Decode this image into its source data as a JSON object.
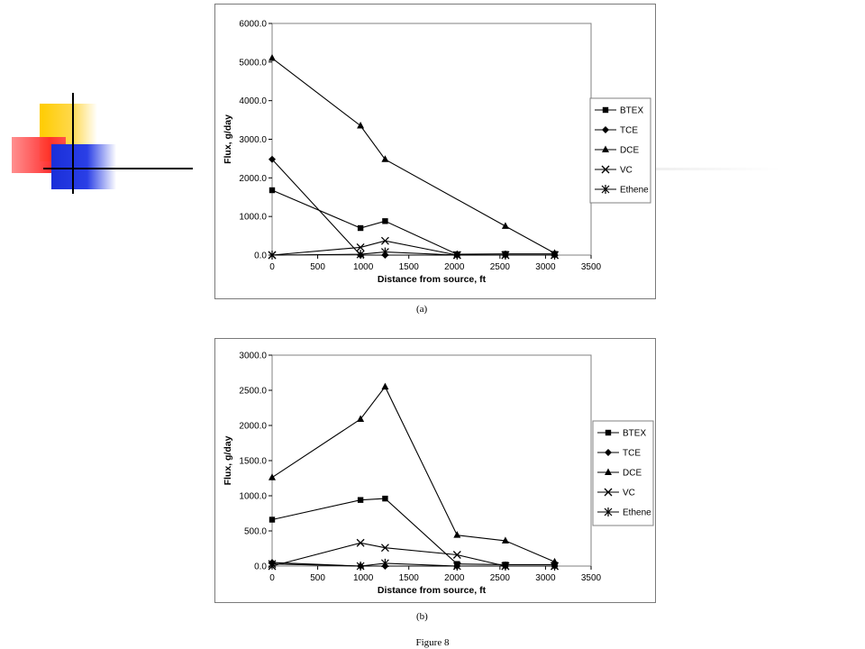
{
  "decoration": {
    "colors": {
      "yellow": "#ffcc00",
      "red": "#ff3333",
      "blue": "#2233dd",
      "line": "#000000"
    }
  },
  "figure_caption": "Figure 8",
  "chart_data": [
    {
      "type": "line",
      "panel_label": "(a)",
      "xlabel": "Distance from source, ft",
      "ylabel": "Flux, g/day",
      "xlim": [
        0,
        3500
      ],
      "ylim": [
        0,
        6000
      ],
      "xticks": [
        "0",
        "500",
        "1000",
        "1500",
        "2000",
        "2500",
        "3000",
        "3500"
      ],
      "yticks": [
        "0.0",
        "1000.0",
        "2000.0",
        "3000.0",
        "4000.0",
        "5000.0",
        "6000.0"
      ],
      "grid": false,
      "legend_position": "right",
      "series": [
        {
          "name": "BTEX",
          "marker": "square",
          "values": [
            [
              0,
              1680
            ],
            [
              970,
              700
            ],
            [
              1240,
              880
            ],
            [
              2030,
              20
            ],
            [
              2560,
              30
            ],
            [
              3100,
              30
            ]
          ]
        },
        {
          "name": "TCE",
          "marker": "diamond",
          "values": [
            [
              0,
              2480
            ],
            [
              970,
              0
            ],
            [
              1240,
              0
            ],
            [
              2030,
              0
            ],
            [
              2560,
              0
            ],
            [
              3100,
              0
            ]
          ]
        },
        {
          "name": "DCE",
          "marker": "triangle",
          "values": [
            [
              0,
              5100
            ],
            [
              970,
              3350
            ],
            [
              1240,
              2480
            ],
            [
              2560,
              750
            ],
            [
              3100,
              50
            ]
          ]
        },
        {
          "name": "VC",
          "marker": "x",
          "values": [
            [
              0,
              0
            ],
            [
              970,
              200
            ],
            [
              1240,
              370
            ],
            [
              2030,
              0
            ],
            [
              2560,
              0
            ],
            [
              3100,
              0
            ]
          ]
        },
        {
          "name": "Ethene",
          "marker": "star",
          "values": [
            [
              0,
              0
            ],
            [
              970,
              20
            ],
            [
              1240,
              80
            ],
            [
              2030,
              0
            ],
            [
              2560,
              0
            ],
            [
              3100,
              0
            ]
          ]
        }
      ]
    },
    {
      "type": "line",
      "panel_label": "(b)",
      "xlabel": "Distance from source, ft",
      "ylabel": "Flux, g/day",
      "xlim": [
        0,
        3500
      ],
      "ylim": [
        0,
        3000
      ],
      "xticks": [
        "0",
        "500",
        "1000",
        "1500",
        "2000",
        "2500",
        "3000",
        "3500"
      ],
      "yticks": [
        "0.0",
        "500.0",
        "1000.0",
        "1500.0",
        "2000.0",
        "2500.0",
        "3000.0"
      ],
      "grid": false,
      "legend_position": "right",
      "series": [
        {
          "name": "BTEX",
          "marker": "square",
          "values": [
            [
              0,
              660
            ],
            [
              970,
              940
            ],
            [
              1240,
              960
            ],
            [
              2030,
              30
            ],
            [
              2560,
              20
            ],
            [
              3100,
              20
            ]
          ]
        },
        {
          "name": "TCE",
          "marker": "diamond",
          "values": [
            [
              0,
              50
            ],
            [
              970,
              0
            ],
            [
              1240,
              0
            ],
            [
              2030,
              0
            ],
            [
              2560,
              0
            ],
            [
              3100,
              0
            ]
          ]
        },
        {
          "name": "DCE",
          "marker": "triangle",
          "values": [
            [
              0,
              1260
            ],
            [
              970,
              2090
            ],
            [
              1240,
              2550
            ],
            [
              2030,
              440
            ],
            [
              2560,
              360
            ],
            [
              3100,
              60
            ]
          ]
        },
        {
          "name": "VC",
          "marker": "x",
          "values": [
            [
              0,
              0
            ],
            [
              970,
              330
            ],
            [
              1240,
              260
            ],
            [
              2030,
              160
            ],
            [
              2560,
              0
            ],
            [
              3100,
              0
            ]
          ]
        },
        {
          "name": "Ethene",
          "marker": "star",
          "values": [
            [
              0,
              30
            ],
            [
              970,
              0
            ],
            [
              1240,
              40
            ],
            [
              2030,
              0
            ],
            [
              2560,
              0
            ],
            [
              3100,
              0
            ]
          ]
        }
      ]
    }
  ]
}
